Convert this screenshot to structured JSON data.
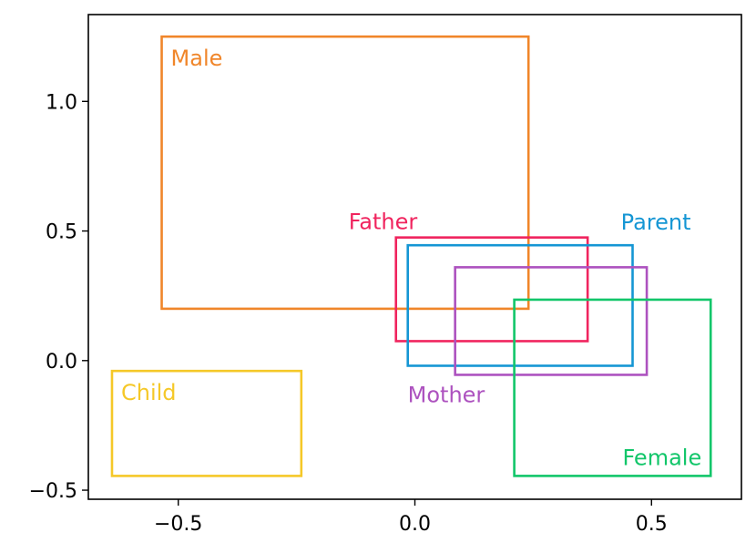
{
  "chart_data": {
    "type": "rectangles",
    "title": "",
    "xlabel": "",
    "ylabel": "",
    "xlim": [
      -0.69,
      0.69
    ],
    "ylim": [
      -0.535,
      1.335
    ],
    "xticks": [
      -0.5,
      0.0,
      0.5
    ],
    "xtick_labels": [
      "−0.5",
      "0.0",
      "0.5"
    ],
    "yticks": [
      -0.5,
      0.0,
      0.5,
      1.0
    ],
    "ytick_labels": [
      "−0.5",
      "0.0",
      "0.5",
      "1.0"
    ],
    "grid": false,
    "boxes": [
      {
        "label": "Male",
        "color": "#f0862a",
        "x0": -0.535,
        "x1": 0.24,
        "y0": 0.2,
        "y1": 1.25,
        "label_anchor": "top-left-inside"
      },
      {
        "label": "Father",
        "color": "#f0245e",
        "x0": -0.04,
        "x1": 0.365,
        "y0": 0.075,
        "y1": 0.475,
        "label_anchor": "above-left"
      },
      {
        "label": "Parent",
        "color": "#1596d4",
        "x0": -0.015,
        "x1": 0.46,
        "y0": -0.02,
        "y1": 0.445,
        "label_anchor": "above-right"
      },
      {
        "label": "Mother",
        "color": "#ad52bf",
        "x0": 0.085,
        "x1": 0.49,
        "y0": -0.055,
        "y1": 0.36,
        "label_anchor": "below-left"
      },
      {
        "label": "Female",
        "color": "#12c66a",
        "x0": 0.21,
        "x1": 0.625,
        "y0": -0.445,
        "y1": 0.235,
        "label_anchor": "bottom-right-inside"
      },
      {
        "label": "Child",
        "color": "#f5c828",
        "x0": -0.64,
        "x1": -0.24,
        "y0": -0.445,
        "y1": -0.04,
        "label_anchor": "top-left-inside"
      }
    ]
  }
}
